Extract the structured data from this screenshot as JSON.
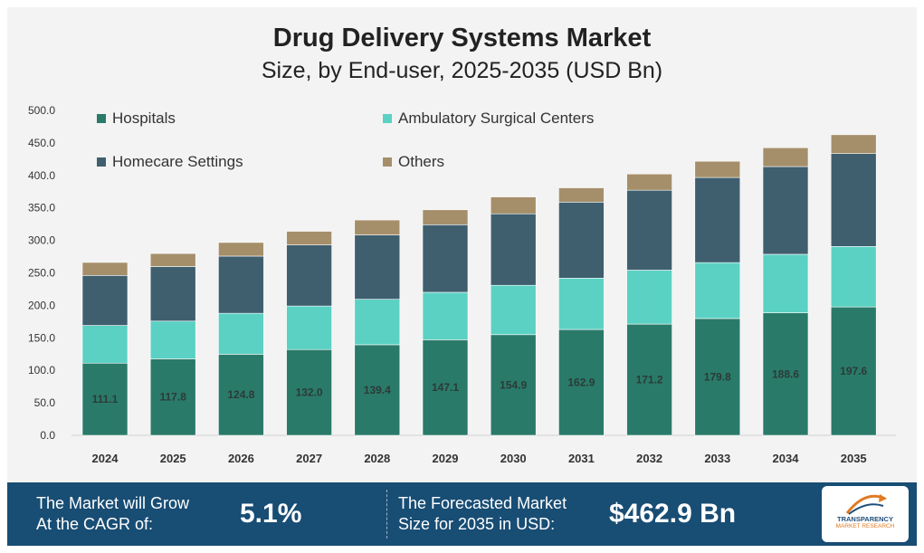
{
  "header": {
    "title": "Drug Delivery Systems Market",
    "subtitle": "Size, by End-user, 2025-2035 (USD Bn)"
  },
  "chart_data": {
    "type": "bar",
    "stacked": true,
    "title": "Drug Delivery Systems Market",
    "subtitle": "Size, by End-user, 2025-2035 (USD Bn)",
    "xlabel": "",
    "ylabel": "",
    "ylim": [
      0,
      500
    ],
    "yticks": [
      "0.0",
      "50.0",
      "100.0",
      "150.0",
      "200.0",
      "250.0",
      "300.0",
      "350.0",
      "400.0",
      "450.0",
      "500.0"
    ],
    "categories": [
      "2024",
      "2025",
      "2026",
      "2027",
      "2028",
      "2029",
      "2030",
      "2031",
      "2032",
      "2033",
      "2034",
      "2035"
    ],
    "legend_position": "top-left",
    "grid": false,
    "series": [
      {
        "name": "Hospitals",
        "color": "#2a7a6a",
        "values": [
          111.1,
          117.8,
          124.8,
          132.0,
          139.4,
          147.1,
          154.9,
          162.9,
          171.2,
          179.8,
          188.6,
          197.6
        ],
        "labels": [
          "111.1",
          "117.8",
          "124.8",
          "132.0",
          "139.4",
          "147.1",
          "154.9",
          "162.9",
          "171.2",
          "179.8",
          "188.6",
          "197.6"
        ]
      },
      {
        "name": "Ambulatory Surgical Centers",
        "color": "#5bd1c3",
        "values": [
          58,
          58,
          63,
          67,
          70,
          73,
          76,
          79,
          83,
          86,
          90,
          93
        ]
      },
      {
        "name": "Homecare Settings",
        "color": "#3f5f6f",
        "values": [
          77,
          84,
          88,
          94,
          99,
          104,
          110,
          117,
          123,
          131,
          135,
          143
        ]
      },
      {
        "name": "Others",
        "color": "#a58f6a",
        "values": [
          20,
          20,
          21,
          21,
          23,
          23,
          26,
          22,
          25,
          25,
          29,
          29
        ]
      }
    ]
  },
  "footer": {
    "cagr_label_line1": "The Market will Grow",
    "cagr_label_line2": "At the CAGR of:",
    "cagr_value": "5.1%",
    "forecast_label_line1": "The Forecasted Market",
    "forecast_label_line2": "Size for 2035 in USD:",
    "forecast_value": "$462.9 Bn",
    "logo_line1": "TRANSPARENCY",
    "logo_line2": "MARKET RESEARCH",
    "colors": {
      "footer_bg": "#184d74",
      "logo_accent": "#e07a24"
    }
  }
}
